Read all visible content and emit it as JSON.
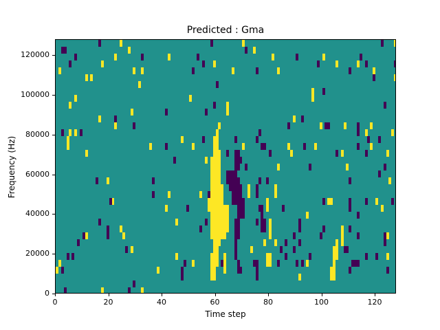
{
  "figure": {
    "background": "#ffffff"
  },
  "chart_data": {
    "type": "heatmap",
    "title": "Predicted : Gma",
    "xlabel": "Time step",
    "ylabel": "Frequency (Hz)",
    "xlim": [
      0,
      128
    ],
    "ylim": [
      0,
      128000
    ],
    "grid": {
      "n_time_steps": 128,
      "n_freq_rows": 37,
      "grid_lines": false
    },
    "legend": "none",
    "x_ticks": [
      {
        "value": 0,
        "label": "0"
      },
      {
        "value": 20,
        "label": "20"
      },
      {
        "value": 40,
        "label": "40"
      },
      {
        "value": 60,
        "label": "60"
      },
      {
        "value": 80,
        "label": "80"
      },
      {
        "value": 100,
        "label": "100"
      },
      {
        "value": 120,
        "label": "120"
      }
    ],
    "y_ticks": [
      {
        "value": 0,
        "label": "0"
      },
      {
        "value": 20000,
        "label": "20000"
      },
      {
        "value": 40000,
        "label": "40000"
      },
      {
        "value": 60000,
        "label": "60000"
      },
      {
        "value": 80000,
        "label": "80000"
      },
      {
        "value": 100000,
        "label": "100000"
      },
      {
        "value": 120000,
        "label": "120000"
      }
    ],
    "colors": {
      "background_mid": "#21918c",
      "low": "#440154",
      "high": "#fde725",
      "axis": "#000000"
    },
    "cells_high": [
      [
        24,
        36
      ],
      [
        70,
        36
      ],
      [
        127,
        36
      ],
      [
        27,
        35
      ],
      [
        74,
        35
      ],
      [
        22,
        34
      ],
      [
        42,
        34
      ],
      [
        81,
        34
      ],
      [
        100,
        34
      ],
      [
        17,
        33
      ],
      [
        59,
        33
      ],
      [
        105,
        33
      ],
      [
        113,
        33
      ],
      [
        1,
        32
      ],
      [
        29,
        32
      ],
      [
        32,
        32
      ],
      [
        66,
        32
      ],
      [
        83,
        32
      ],
      [
        119,
        32
      ],
      [
        11,
        31
      ],
      [
        13,
        31
      ],
      [
        127,
        31
      ],
      [
        31,
        30
      ],
      [
        96,
        29
      ],
      [
        7,
        28
      ],
      [
        50,
        28
      ],
      [
        96,
        28
      ],
      [
        5,
        27
      ],
      [
        64,
        27
      ],
      [
        28,
        26
      ],
      [
        64,
        26
      ],
      [
        16,
        25
      ],
      [
        89,
        25
      ],
      [
        22,
        24
      ],
      [
        61,
        24
      ],
      [
        99,
        24
      ],
      [
        108,
        24
      ],
      [
        118,
        24
      ],
      [
        5,
        23
      ],
      [
        7,
        23
      ],
      [
        60,
        23
      ],
      [
        116,
        23
      ],
      [
        126,
        23
      ],
      [
        4,
        22
      ],
      [
        47,
        22
      ],
      [
        59,
        22
      ],
      [
        60,
        22
      ],
      [
        4,
        21
      ],
      [
        35,
        21
      ],
      [
        51,
        21
      ],
      [
        59,
        21
      ],
      [
        60,
        21
      ],
      [
        70,
        21
      ],
      [
        87,
        21
      ],
      [
        97,
        21
      ],
      [
        118,
        21
      ],
      [
        11,
        20
      ],
      [
        59,
        20
      ],
      [
        60,
        20
      ],
      [
        61,
        20
      ],
      [
        88,
        20
      ],
      [
        107,
        20
      ],
      [
        124,
        20
      ],
      [
        56,
        19
      ],
      [
        58,
        19
      ],
      [
        59,
        19
      ],
      [
        60,
        19
      ],
      [
        61,
        19
      ],
      [
        58,
        18
      ],
      [
        59,
        18
      ],
      [
        60,
        18
      ],
      [
        61,
        18
      ],
      [
        83,
        18
      ],
      [
        109,
        18
      ],
      [
        58,
        17
      ],
      [
        59,
        17
      ],
      [
        60,
        17
      ],
      [
        61,
        17
      ],
      [
        19,
        16
      ],
      [
        58,
        16
      ],
      [
        59,
        16
      ],
      [
        60,
        16
      ],
      [
        61,
        16
      ],
      [
        125,
        16
      ],
      [
        58,
        15
      ],
      [
        59,
        15
      ],
      [
        60,
        15
      ],
      [
        61,
        15
      ],
      [
        62,
        15
      ],
      [
        72,
        15
      ],
      [
        82,
        15
      ],
      [
        42,
        14
      ],
      [
        54,
        14
      ],
      [
        58,
        14
      ],
      [
        59,
        14
      ],
      [
        60,
        14
      ],
      [
        61,
        14
      ],
      [
        62,
        14
      ],
      [
        72,
        14
      ],
      [
        82,
        14
      ],
      [
        21,
        13
      ],
      [
        57,
        13
      ],
      [
        58,
        13
      ],
      [
        59,
        13
      ],
      [
        60,
        13
      ],
      [
        61,
        13
      ],
      [
        62,
        13
      ],
      [
        79,
        13
      ],
      [
        102,
        13
      ],
      [
        103,
        13
      ],
      [
        120,
        13
      ],
      [
        41,
        12
      ],
      [
        57,
        12
      ],
      [
        58,
        12
      ],
      [
        59,
        12
      ],
      [
        60,
        12
      ],
      [
        61,
        12
      ],
      [
        62,
        12
      ],
      [
        63,
        12
      ],
      [
        64,
        12
      ],
      [
        79,
        12
      ],
      [
        122,
        12
      ],
      [
        58,
        11
      ],
      [
        59,
        11
      ],
      [
        60,
        11
      ],
      [
        61,
        11
      ],
      [
        62,
        11
      ],
      [
        63,
        11
      ],
      [
        64,
        11
      ],
      [
        94,
        11
      ],
      [
        45,
        10
      ],
      [
        58,
        10
      ],
      [
        59,
        10
      ],
      [
        60,
        10
      ],
      [
        61,
        10
      ],
      [
        62,
        10
      ],
      [
        63,
        10
      ],
      [
        64,
        10
      ],
      [
        80,
        10
      ],
      [
        24,
        9
      ],
      [
        58,
        9
      ],
      [
        59,
        9
      ],
      [
        60,
        9
      ],
      [
        61,
        9
      ],
      [
        62,
        9
      ],
      [
        63,
        9
      ],
      [
        64,
        9
      ],
      [
        80,
        9
      ],
      [
        107,
        9
      ],
      [
        11,
        8
      ],
      [
        25,
        8
      ],
      [
        58,
        8
      ],
      [
        59,
        8
      ],
      [
        60,
        8
      ],
      [
        61,
        8
      ],
      [
        62,
        8
      ],
      [
        63,
        8
      ],
      [
        80,
        8
      ],
      [
        107,
        8
      ],
      [
        124,
        8
      ],
      [
        59,
        7
      ],
      [
        60,
        7
      ],
      [
        61,
        7
      ],
      [
        78,
        7
      ],
      [
        82,
        7
      ],
      [
        105,
        7
      ],
      [
        107,
        7
      ],
      [
        28,
        6
      ],
      [
        59,
        6
      ],
      [
        60,
        6
      ],
      [
        73,
        6
      ],
      [
        104,
        6
      ],
      [
        105,
        6
      ],
      [
        45,
        5
      ],
      [
        58,
        5
      ],
      [
        59,
        5
      ],
      [
        60,
        5
      ],
      [
        63,
        5
      ],
      [
        79,
        5
      ],
      [
        80,
        5
      ],
      [
        104,
        5
      ],
      [
        105,
        5
      ],
      [
        124,
        5
      ],
      [
        1,
        4
      ],
      [
        51,
        4
      ],
      [
        58,
        4
      ],
      [
        59,
        4
      ],
      [
        60,
        4
      ],
      [
        63,
        4
      ],
      [
        79,
        4
      ],
      [
        80,
        4
      ],
      [
        94,
        4
      ],
      [
        104,
        4
      ],
      [
        0,
        3
      ],
      [
        38,
        3
      ],
      [
        58,
        3
      ],
      [
        59,
        3
      ],
      [
        63,
        3
      ],
      [
        103,
        3
      ],
      [
        104,
        3
      ],
      [
        58,
        2
      ],
      [
        59,
        2
      ],
      [
        91,
        2
      ],
      [
        103,
        2
      ],
      [
        104,
        2
      ],
      [
        17,
        0
      ],
      [
        32,
        0
      ]
    ],
    "cells_low": [
      [
        16,
        36
      ],
      [
        58,
        36
      ],
      [
        122,
        36
      ],
      [
        2,
        35
      ],
      [
        3,
        35
      ],
      [
        71,
        35
      ],
      [
        7,
        34
      ],
      [
        32,
        34
      ],
      [
        53,
        34
      ],
      [
        90,
        34
      ],
      [
        114,
        34
      ],
      [
        5,
        33
      ],
      [
        55,
        33
      ],
      [
        98,
        33
      ],
      [
        116,
        33
      ],
      [
        127,
        33
      ],
      [
        51,
        32
      ],
      [
        75,
        32
      ],
      [
        110,
        32
      ],
      [
        119,
        31
      ],
      [
        60,
        30
      ],
      [
        100,
        29
      ],
      [
        59,
        27
      ],
      [
        123,
        27
      ],
      [
        41,
        26
      ],
      [
        56,
        26
      ],
      [
        22,
        25
      ],
      [
        92,
        25
      ],
      [
        29,
        24
      ],
      [
        87,
        24
      ],
      [
        101,
        24
      ],
      [
        102,
        24
      ],
      [
        113,
        24
      ],
      [
        2,
        23
      ],
      [
        9,
        23
      ],
      [
        76,
        23
      ],
      [
        113,
        23
      ],
      [
        55,
        22
      ],
      [
        67,
        22
      ],
      [
        75,
        22
      ],
      [
        117,
        22
      ],
      [
        121,
        22
      ],
      [
        41,
        21
      ],
      [
        77,
        21
      ],
      [
        78,
        21
      ],
      [
        93,
        21
      ],
      [
        113,
        21
      ],
      [
        64,
        20
      ],
      [
        67,
        20
      ],
      [
        68,
        20
      ],
      [
        80,
        20
      ],
      [
        105,
        20
      ],
      [
        116,
        20
      ],
      [
        44,
        19
      ],
      [
        67,
        19
      ],
      [
        68,
        19
      ],
      [
        69,
        19
      ],
      [
        67,
        18
      ],
      [
        68,
        18
      ],
      [
        71,
        18
      ],
      [
        95,
        18
      ],
      [
        123,
        18
      ],
      [
        64,
        17
      ],
      [
        65,
        17
      ],
      [
        66,
        17
      ],
      [
        67,
        17
      ],
      [
        121,
        17
      ],
      [
        15,
        16
      ],
      [
        36,
        16
      ],
      [
        64,
        16
      ],
      [
        65,
        16
      ],
      [
        66,
        16
      ],
      [
        67,
        16
      ],
      [
        68,
        16
      ],
      [
        76,
        16
      ],
      [
        79,
        16
      ],
      [
        110,
        16
      ],
      [
        65,
        15
      ],
      [
        66,
        15
      ],
      [
        67,
        15
      ],
      [
        68,
        15
      ],
      [
        69,
        15
      ],
      [
        75,
        15
      ],
      [
        36,
        14
      ],
      [
        57,
        14
      ],
      [
        66,
        14
      ],
      [
        67,
        14
      ],
      [
        68,
        14
      ],
      [
        69,
        14
      ],
      [
        75,
        14
      ],
      [
        20,
        13
      ],
      [
        66,
        13
      ],
      [
        67,
        13
      ],
      [
        68,
        13
      ],
      [
        69,
        13
      ],
      [
        70,
        13
      ],
      [
        100,
        13
      ],
      [
        110,
        13
      ],
      [
        116,
        13
      ],
      [
        126,
        13
      ],
      [
        49,
        12
      ],
      [
        68,
        12
      ],
      [
        69,
        12
      ],
      [
        70,
        12
      ],
      [
        76,
        12
      ],
      [
        77,
        12
      ],
      [
        85,
        12
      ],
      [
        110,
        12
      ],
      [
        68,
        11
      ],
      [
        69,
        11
      ],
      [
        70,
        11
      ],
      [
        77,
        11
      ],
      [
        113,
        11
      ],
      [
        16,
        10
      ],
      [
        56,
        10
      ],
      [
        67,
        10
      ],
      [
        68,
        10
      ],
      [
        75,
        10
      ],
      [
        77,
        10
      ],
      [
        78,
        10
      ],
      [
        91,
        10
      ],
      [
        19,
        9
      ],
      [
        54,
        9
      ],
      [
        67,
        9
      ],
      [
        68,
        9
      ],
      [
        77,
        9
      ],
      [
        78,
        9
      ],
      [
        91,
        9
      ],
      [
        100,
        9
      ],
      [
        110,
        9
      ],
      [
        10,
        8
      ],
      [
        19,
        8
      ],
      [
        67,
        8
      ],
      [
        68,
        8
      ],
      [
        89,
        8
      ],
      [
        99,
        8
      ],
      [
        113,
        8
      ],
      [
        123,
        8
      ],
      [
        8,
        7
      ],
      [
        67,
        7
      ],
      [
        86,
        7
      ],
      [
        91,
        7
      ],
      [
        123,
        7
      ],
      [
        26,
        6
      ],
      [
        67,
        6
      ],
      [
        84,
        6
      ],
      [
        89,
        6
      ],
      [
        108,
        6
      ],
      [
        109,
        6
      ],
      [
        4,
        5
      ],
      [
        6,
        5
      ],
      [
        67,
        5
      ],
      [
        86,
        5
      ],
      [
        95,
        5
      ],
      [
        116,
        5
      ],
      [
        120,
        5
      ],
      [
        48,
        4
      ],
      [
        62,
        4
      ],
      [
        68,
        4
      ],
      [
        74,
        4
      ],
      [
        75,
        4
      ],
      [
        83,
        4
      ],
      [
        90,
        4
      ],
      [
        92,
        4
      ],
      [
        111,
        4
      ],
      [
        112,
        4
      ],
      [
        113,
        4
      ],
      [
        2,
        3
      ],
      [
        47,
        3
      ],
      [
        68,
        3
      ],
      [
        69,
        3
      ],
      [
        75,
        3
      ],
      [
        110,
        3
      ],
      [
        124,
        3
      ],
      [
        47,
        2
      ],
      [
        75,
        2
      ],
      [
        29,
        1
      ],
      [
        3,
        0
      ],
      [
        27,
        0
      ]
    ]
  }
}
